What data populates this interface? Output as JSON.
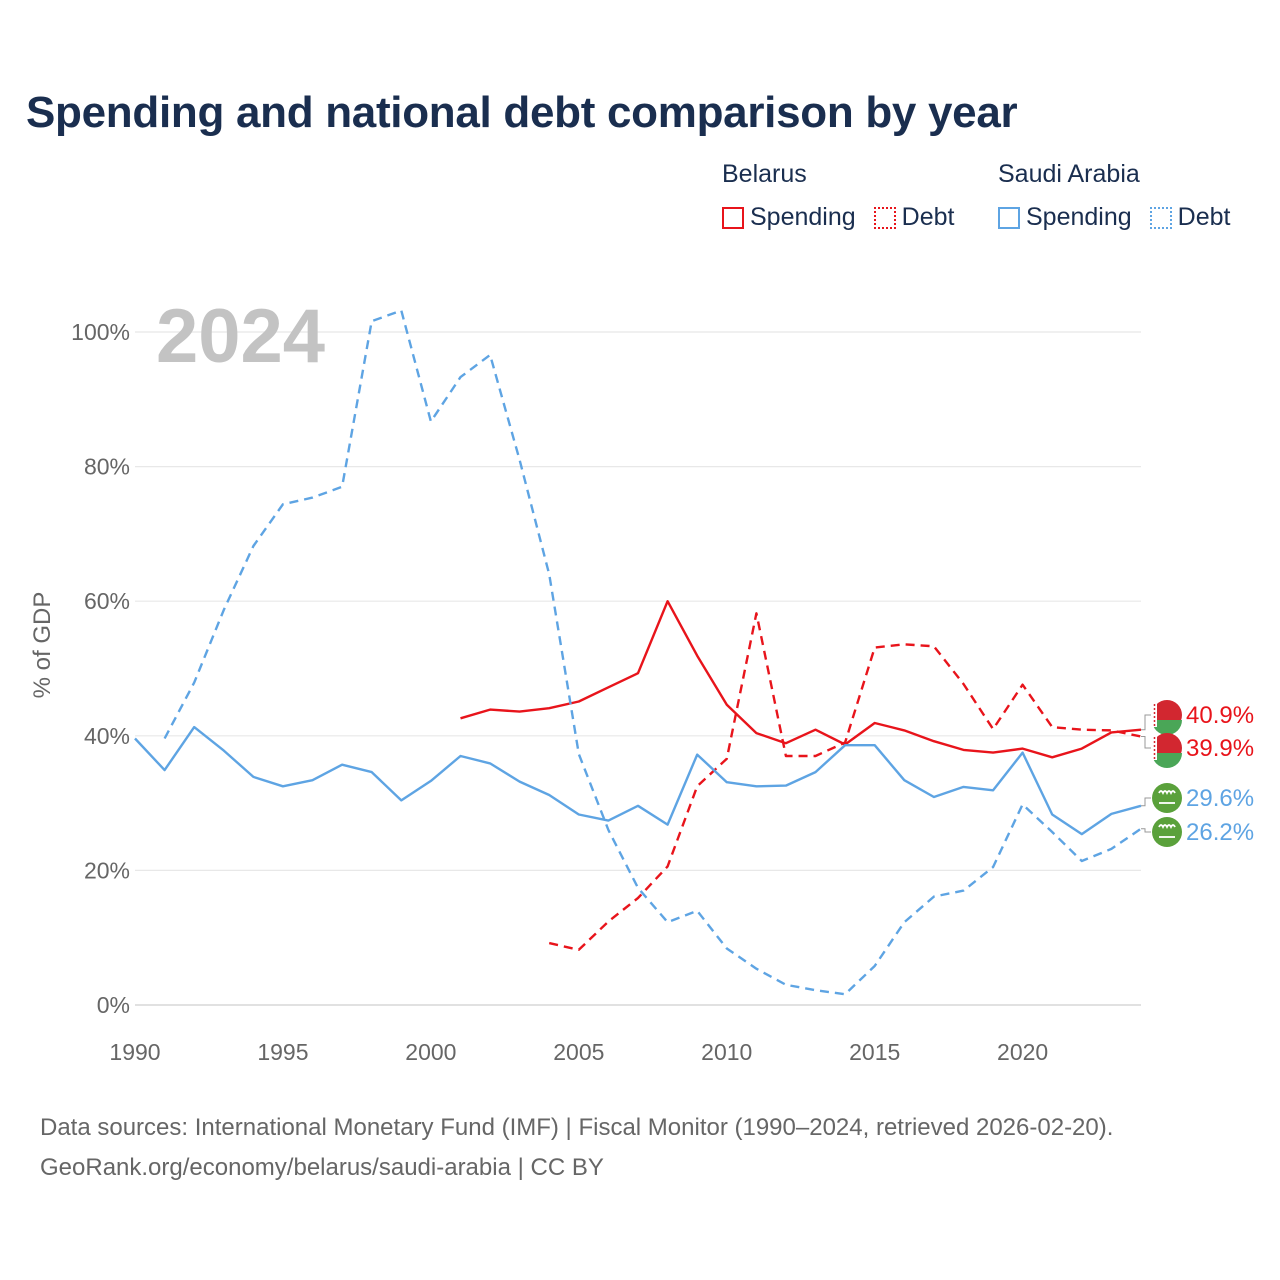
{
  "title": "Spending and national debt comparison by year",
  "year_watermark": "2024",
  "legend": {
    "belarus": {
      "country": "Belarus",
      "spending": "Spending",
      "debt": "Debt"
    },
    "saudi": {
      "country": "Saudi Arabia",
      "spending": "Spending",
      "debt": "Debt"
    }
  },
  "colors": {
    "belarus": "#e8141b",
    "saudi": "#5ea4e3"
  },
  "footer": {
    "line1": "Data sources: International Monetary Fund (IMF) | Fiscal Monitor (1990–2024, retrieved 2026-02-20).",
    "line2": "GeoRank.org/economy/belarus/saudi-arabia | CC BY"
  },
  "chart_data": {
    "type": "line",
    "ylabel": "% of GDP",
    "xlim": [
      1990,
      2024
    ],
    "ylim": [
      0,
      105
    ],
    "x_ticks": [
      1990,
      1995,
      2000,
      2005,
      2010,
      2015,
      2020
    ],
    "y_ticks": [
      0,
      20,
      40,
      60,
      80,
      100
    ],
    "y_tick_labels": [
      "0%",
      "20%",
      "40%",
      "60%",
      "80%",
      "100%"
    ],
    "end_labels": [
      {
        "series": "Belarus Spending",
        "label": "40.9%",
        "flag": "belarus"
      },
      {
        "series": "Belarus Debt",
        "label": "39.9%",
        "flag": "belarus"
      },
      {
        "series": "Saudi Arabia Spending",
        "label": "29.6%",
        "flag": "saudi"
      },
      {
        "series": "Saudi Arabia Debt",
        "label": "26.2%",
        "flag": "saudi"
      }
    ],
    "series": [
      {
        "name": "Belarus Spending",
        "country": "belarus",
        "style": "solid",
        "x": [
          2001,
          2002,
          2003,
          2004,
          2005,
          2006,
          2007,
          2008,
          2009,
          2010,
          2011,
          2012,
          2013,
          2014,
          2015,
          2016,
          2017,
          2018,
          2019,
          2020,
          2021,
          2022,
          2023,
          2024
        ],
        "values": [
          42.6,
          43.9,
          43.6,
          44.1,
          45.1,
          47.2,
          49.3,
          60.0,
          51.9,
          44.6,
          40.4,
          38.9,
          40.9,
          38.7,
          41.9,
          40.8,
          39.2,
          37.9,
          37.5,
          38.1,
          36.8,
          38.1,
          40.5,
          40.9
        ]
      },
      {
        "name": "Belarus Debt",
        "country": "belarus",
        "style": "dashed",
        "x": [
          2004,
          2005,
          2006,
          2007,
          2008,
          2009,
          2010,
          2011,
          2012,
          2013,
          2014,
          2015,
          2016,
          2017,
          2018,
          2019,
          2020,
          2021,
          2022,
          2023,
          2024
        ],
        "values": [
          9.2,
          8.2,
          12.4,
          15.9,
          20.6,
          32.5,
          36.6,
          58.2,
          37.0,
          37.0,
          39.0,
          53.1,
          53.6,
          53.3,
          47.7,
          41.0,
          47.6,
          41.3,
          40.9,
          40.8,
          39.9
        ]
      },
      {
        "name": "Saudi Arabia Spending",
        "country": "saudi",
        "style": "solid",
        "x": [
          1990,
          1991,
          1992,
          1993,
          1994,
          1995,
          1996,
          1997,
          1998,
          1999,
          2000,
          2001,
          2002,
          2003,
          2004,
          2005,
          2006,
          2007,
          2008,
          2009,
          2010,
          2011,
          2012,
          2013,
          2014,
          2015,
          2016,
          2017,
          2018,
          2019,
          2020,
          2021,
          2022,
          2023,
          2024
        ],
        "values": [
          39.6,
          34.9,
          41.3,
          37.8,
          33.9,
          32.5,
          33.4,
          35.7,
          34.6,
          30.4,
          33.3,
          37.0,
          35.9,
          33.2,
          31.2,
          28.3,
          27.4,
          29.6,
          26.8,
          37.2,
          33.1,
          32.5,
          32.6,
          34.6,
          38.6,
          38.6,
          33.4,
          30.9,
          32.4,
          31.9,
          37.5,
          28.3,
          25.4,
          28.4,
          29.6
        ]
      },
      {
        "name": "Saudi Arabia Debt",
        "country": "saudi",
        "style": "dashed",
        "x": [
          1991,
          1992,
          1993,
          1994,
          1995,
          1996,
          1997,
          1998,
          1999,
          2000,
          2001,
          2002,
          2003,
          2004,
          2005,
          2006,
          2007,
          2008,
          2009,
          2010,
          2011,
          2012,
          2013,
          2014,
          2015,
          2016,
          2017,
          2018,
          2019,
          2020,
          2021,
          2022,
          2023,
          2024
        ],
        "values": [
          39.6,
          47.9,
          58.7,
          68.2,
          74.4,
          75.4,
          77.0,
          101.6,
          103.2,
          86.7,
          93.3,
          96.6,
          81.0,
          64.0,
          37.3,
          26.0,
          17.4,
          12.3,
          14.0,
          8.4,
          5.4,
          3.0,
          2.2,
          1.6,
          5.8,
          12.3,
          16.1,
          17.0,
          20.5,
          29.8,
          25.7,
          21.4,
          23.2,
          26.2
        ]
      }
    ]
  }
}
